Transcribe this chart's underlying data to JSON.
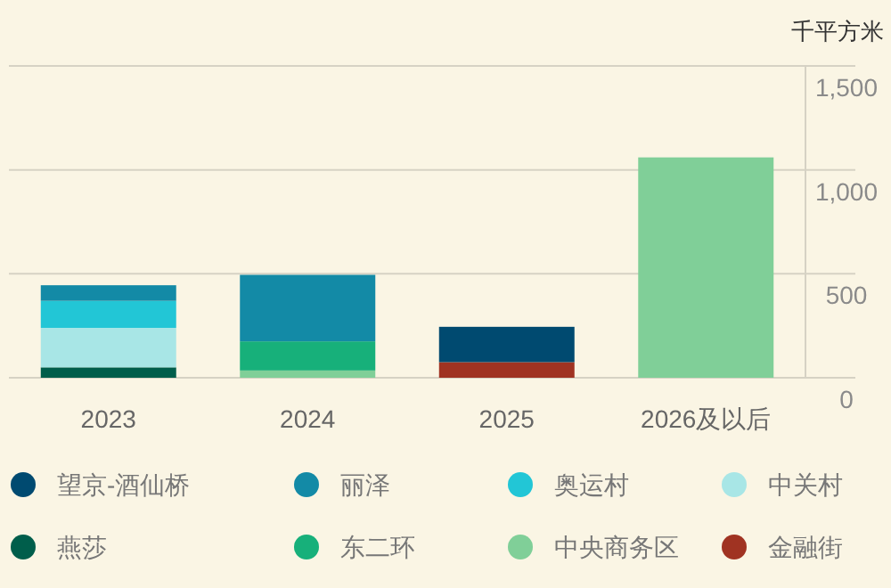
{
  "chart_data": {
    "type": "bar",
    "stacked": true,
    "ylabel": "千平方米",
    "categories": [
      "2023",
      "2024",
      "2025",
      "2026及以后"
    ],
    "series": [
      {
        "name": "金融街",
        "color": "#a03322",
        "values": [
          null,
          null,
          75,
          null
        ]
      },
      {
        "name": "中央商务区",
        "color": "#80cf98",
        "values": [
          null,
          35,
          null,
          1060
        ]
      },
      {
        "name": "东二环",
        "color": "#17b07a",
        "values": [
          null,
          140,
          null,
          null
        ]
      },
      {
        "name": "燕莎",
        "color": "#005e4b",
        "values": [
          50,
          null,
          null,
          null
        ]
      },
      {
        "name": "中关村",
        "color": "#a8e6e6",
        "values": [
          190,
          null,
          null,
          null
        ]
      },
      {
        "name": "奥运村",
        "color": "#22c6d6",
        "values": [
          130,
          null,
          null,
          null
        ]
      },
      {
        "name": "丽泽",
        "color": "#138aa6",
        "values": [
          75,
          320,
          null,
          null
        ]
      },
      {
        "name": "望京-酒仙桥",
        "color": "#004a70",
        "values": [
          null,
          null,
          170,
          null
        ]
      }
    ],
    "ylim": [
      0,
      1500
    ],
    "yticks": [
      0,
      500,
      {
        "value": 1000,
        "label": "1,000"
      },
      {
        "value": 1500,
        "label": "1,500"
      }
    ],
    "grid": "y",
    "legend": "bottom"
  }
}
